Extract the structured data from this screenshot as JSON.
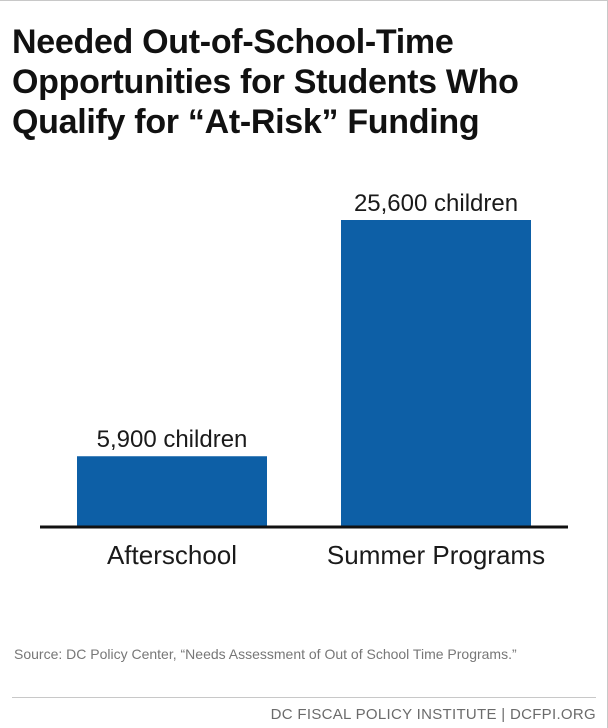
{
  "title": "Needed Out-of-School-Time Opportunities for Students Who Qualify for “At-Risk” Funding",
  "chart_data": {
    "type": "bar",
    "categories": [
      "Afterschool",
      "Summer Programs"
    ],
    "values": [
      5900,
      25600
    ],
    "data_labels": [
      "5,900 children",
      "25,600 children"
    ],
    "ylim": [
      0,
      25600
    ],
    "bar_color": "#0d5fa6",
    "grid": false,
    "xlabel": "",
    "ylabel": ""
  },
  "source": "Source: DC Policy Center, “Needs Assessment of Out of School Time Programs.”",
  "footer": "DC FISCAL POLICY INSTITUTE | DCFPI.ORG"
}
